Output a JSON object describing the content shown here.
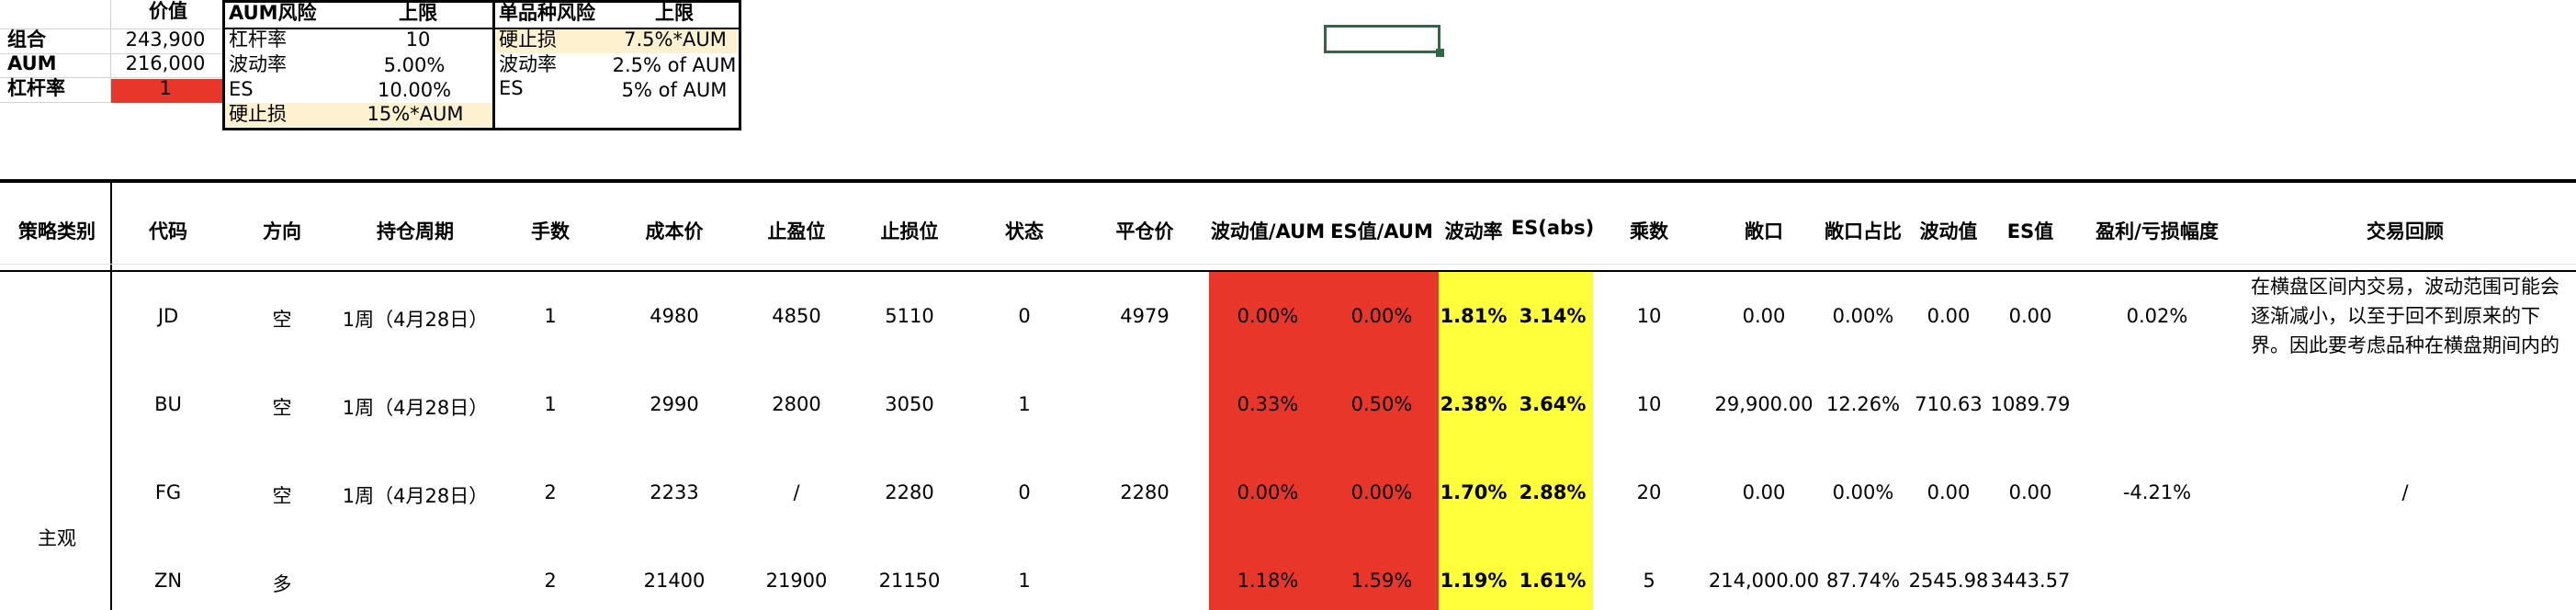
{
  "summary": {
    "header_value": "价值",
    "rows": [
      {
        "label": "组合",
        "value": "243,900"
      },
      {
        "label": "AUM",
        "value": "216,000"
      },
      {
        "label": "杠杆率",
        "value": "1"
      }
    ]
  },
  "aum_risk": {
    "col1": "AUM风险",
    "col2": "上限",
    "rows": [
      {
        "label": "杠杆率",
        "value": "10"
      },
      {
        "label": "波动率",
        "value": "5.00%"
      },
      {
        "label": "ES",
        "value": "10.00%"
      },
      {
        "label": "硬止损",
        "value": "15%*AUM"
      }
    ]
  },
  "single_risk": {
    "col1": "单品种风险",
    "col2": "上限",
    "rows": [
      {
        "label": "硬止损",
        "value": "7.5%*AUM"
      },
      {
        "label": "波动率",
        "value": "2.5% of AUM"
      },
      {
        "label": "ES",
        "value": "5% of AUM"
      }
    ]
  },
  "table": {
    "headers": [
      "策略类别",
      "代码",
      "方向",
      "持仓周期",
      "手数",
      "成本价",
      "止盈位",
      "止损位",
      "状态",
      "平仓价",
      "波动值/AUM",
      "ES值/AUM",
      "波动率",
      "ES(abs)",
      "乘数",
      "敞口",
      "敞口占比",
      "波动值",
      "ES值",
      "盈利/亏损幅度",
      "交易回顾"
    ],
    "category": "主观",
    "rows": [
      {
        "code": "JD",
        "dir": "空",
        "period": "1周（4月28日）",
        "lots": "1",
        "cost": "4980",
        "tp": "4850",
        "sl": "5110",
        "state": "0",
        "close": "4979",
        "vol_aum": "0.00%",
        "es_aum": "0.00%",
        "vol": "1.81%",
        "es_abs": "3.14%",
        "mult": "10",
        "exposure": "0.00",
        "exp_pct": "0.00%",
        "vol_val": "0.00",
        "es_val": "0.00",
        "pnl": "0.02%",
        "review": "在横盘区间内交易，波动范围可能会逐渐减小，以至于回不到原来的下界。因此要考虑品种在横盘期间内的波动，止"
      },
      {
        "code": "BU",
        "dir": "空",
        "period": "1周（4月28日）",
        "lots": "1",
        "cost": "2990",
        "tp": "2800",
        "sl": "3050",
        "state": "1",
        "close": "",
        "vol_aum": "0.33%",
        "es_aum": "0.50%",
        "vol": "2.38%",
        "es_abs": "3.64%",
        "mult": "10",
        "exposure": "29,900.00",
        "exp_pct": "12.26%",
        "vol_val": "710.63",
        "es_val": "1089.79",
        "pnl": "",
        "review": ""
      },
      {
        "code": "FG",
        "dir": "空",
        "period": "1周（4月28日）",
        "lots": "2",
        "cost": "2233",
        "tp": "/",
        "sl": "2280",
        "state": "0",
        "close": "2280",
        "vol_aum": "0.00%",
        "es_aum": "0.00%",
        "vol": "1.70%",
        "es_abs": "2.88%",
        "mult": "20",
        "exposure": "0.00",
        "exp_pct": "0.00%",
        "vol_val": "0.00",
        "es_val": "0.00",
        "pnl": "-4.21%",
        "review": "/"
      },
      {
        "code": "ZN",
        "dir": "多",
        "period": "",
        "lots": "2",
        "cost": "21400",
        "tp": "21900",
        "sl": "21150",
        "state": "1",
        "close": "",
        "vol_aum": "1.18%",
        "es_aum": "1.59%",
        "vol": "1.19%",
        "es_abs": "1.61%",
        "mult": "5",
        "exposure": "214,000.00",
        "exp_pct": "87.74%",
        "vol_val": "2545.98",
        "es_val": "3443.57",
        "pnl": "",
        "review": ""
      }
    ]
  },
  "colors": {
    "red": "#e8372a",
    "yellow": "#ffff3c",
    "cream": "#fdf1cf",
    "selection": "#2b6b3f"
  }
}
